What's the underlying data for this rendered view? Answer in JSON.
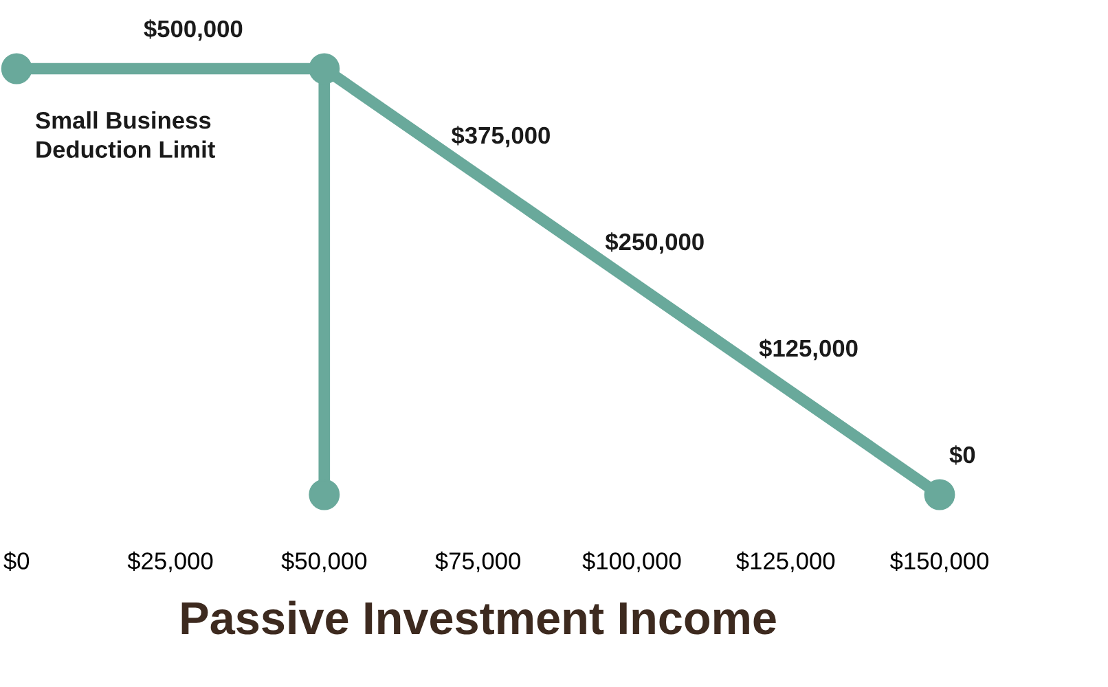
{
  "chart_data": {
    "type": "line",
    "xlabel": "Passive Investment Income",
    "series": [
      {
        "color": "#69a99b",
        "x": [
          0,
          25000,
          50000,
          75000,
          100000,
          125000,
          150000
        ],
        "values": [
          500000,
          500000,
          500000,
          375000,
          250000,
          125000,
          0
        ],
        "value_labels": [
          null,
          "$500,000",
          null,
          "$375,000",
          "$250,000",
          "$125,000",
          "$0"
        ]
      },
      {
        "color": "#69a99b",
        "x": [
          50000,
          50000
        ],
        "values": [
          500000,
          0
        ]
      },
      {
        "type": "scatter",
        "color": "#69a99b",
        "marker": "circle",
        "x": [
          0,
          50000,
          50000,
          150000
        ],
        "values": [
          500000,
          500000,
          0,
          0
        ]
      }
    ],
    "line_style": "solid",
    "grid": false,
    "legend": false,
    "tick_labels": "x",
    "xlim": [
      0,
      150000
    ],
    "xticks": [
      {
        "value": 0,
        "label": "$0"
      },
      {
        "value": 25000,
        "label": "$25,000"
      },
      {
        "value": 50000,
        "label": "$50,000"
      },
      {
        "value": 75000,
        "label": "$75,000"
      },
      {
        "value": 100000,
        "label": "$100,000"
      },
      {
        "value": 125000,
        "label": "$125,000"
      },
      {
        "value": 150000,
        "label": "$150,000"
      }
    ],
    "annotations": [
      "Small Business\nDeduction Limit"
    ]
  }
}
